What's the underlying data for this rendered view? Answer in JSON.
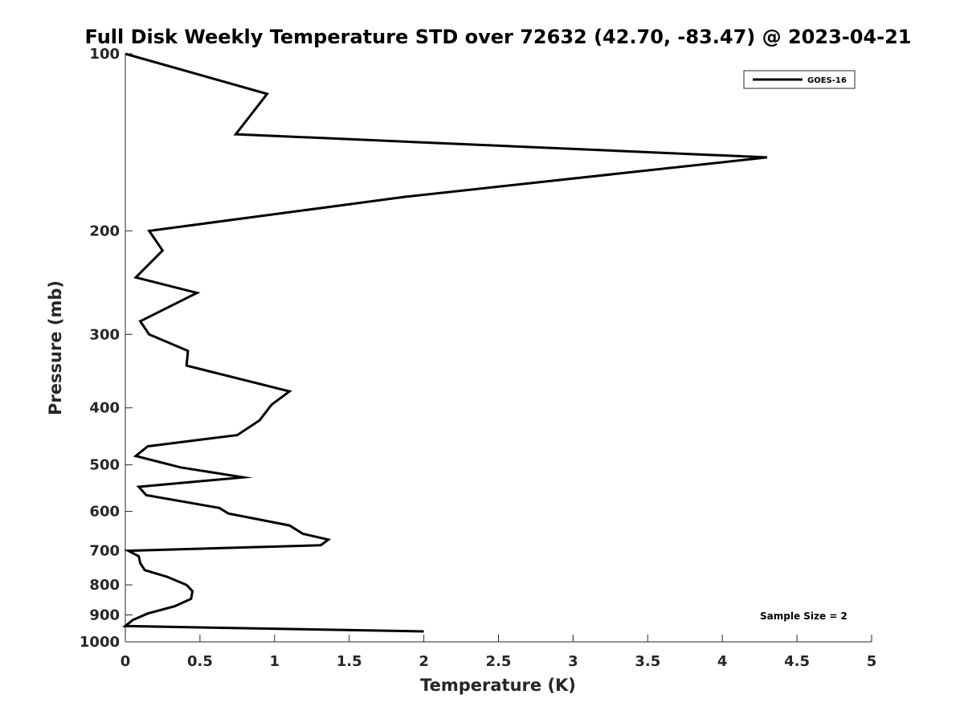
{
  "chart_data": {
    "type": "line",
    "title": "Full Disk Weekly Temperature STD over 72632 (42.70, -83.47) @ 2023-04-21",
    "xlabel": "Temperature (K)",
    "ylabel": "Pressure (mb)",
    "xlim": [
      0,
      5
    ],
    "ylim": [
      100,
      1000
    ],
    "y_scale": "log",
    "y_reversed": true,
    "grid": false,
    "legend_position": "top-right",
    "x_ticks": [
      0,
      0.5,
      1,
      1.5,
      2,
      2.5,
      3,
      3.5,
      4,
      4.5,
      5
    ],
    "x_tick_labels": [
      "0",
      "0.5",
      "1",
      "1.5",
      "2",
      "2.5",
      "3",
      "3.5",
      "4",
      "4.5",
      "5"
    ],
    "y_ticks": [
      100,
      200,
      300,
      400,
      500,
      600,
      700,
      800,
      900,
      1000
    ],
    "y_tick_labels": [
      "100",
      "200",
      "300",
      "400",
      "500",
      "600",
      "700",
      "800",
      "900",
      "1000"
    ],
    "series": [
      {
        "name": "GOES-16",
        "color": "#000000",
        "x": [
          0.0,
          0.95,
          0.74,
          4.3,
          1.88,
          0.16,
          0.25,
          0.07,
          0.48,
          0.1,
          0.16,
          0.42,
          0.41,
          1.1,
          0.98,
          0.9,
          0.75,
          0.15,
          0.07,
          0.37,
          0.79,
          0.09,
          0.14,
          0.63,
          0.69,
          1.1,
          1.19,
          1.36,
          1.31,
          0.02,
          0.09,
          0.1,
          0.13,
          0.28,
          0.41,
          0.45,
          0.44,
          0.33,
          0.15,
          0.05,
          0.0,
          2.0
        ],
        "y": [
          100,
          117,
          137,
          150,
          175,
          200,
          216,
          240,
          255,
          285,
          300,
          320,
          339,
          375,
          395,
          420,
          445,
          465,
          483,
          505,
          525,
          545,
          563,
          592,
          605,
          634,
          655,
          670,
          685,
          700,
          715,
          735,
          755,
          775,
          800,
          820,
          845,
          870,
          895,
          918,
          940,
          960
        ]
      }
    ],
    "annotations": [
      {
        "text": "Sample Size = 2"
      }
    ]
  }
}
